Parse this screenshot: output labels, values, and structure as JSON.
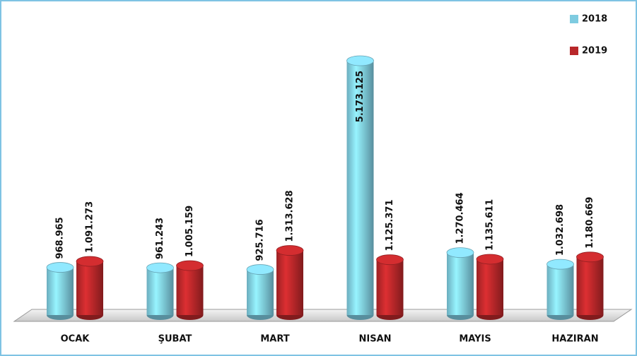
{
  "chart_data": {
    "type": "bar3d",
    "categories": [
      "OCAK",
      "ŞUBAT",
      "MART",
      "NISAN",
      "MAYIS",
      "HAZIRAN"
    ],
    "series": [
      {
        "name": "2018",
        "color": "#7ecbe0",
        "values": [
          968965,
          961243,
          925716,
          5173125,
          1270464,
          1032698
        ],
        "value_labels": [
          "968.965",
          "961.243",
          "925.716",
          "5.173.125",
          "1.270.464",
          "1.032.698"
        ]
      },
      {
        "name": "2019",
        "color": "#b8272a",
        "values": [
          1091273,
          1005159,
          1313628,
          1125371,
          1135611,
          1180669
        ],
        "value_labels": [
          "1.091.273",
          "1.005.159",
          "1.313.628",
          "1.125.371",
          "1.135.611",
          "1.180.669"
        ]
      }
    ],
    "legend": "top-right"
  }
}
